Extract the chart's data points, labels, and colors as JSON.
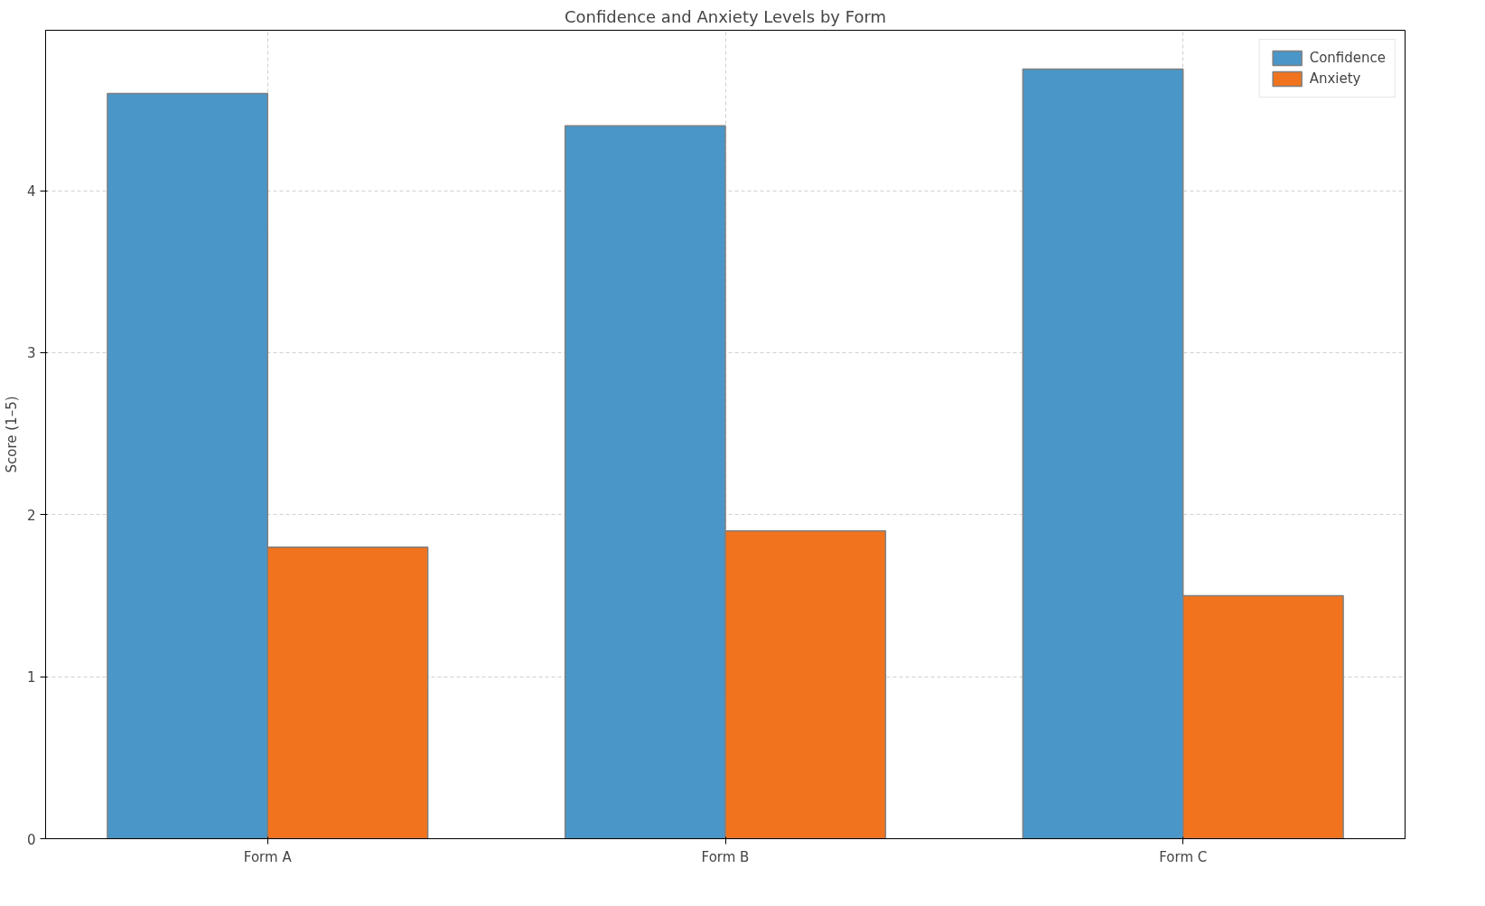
{
  "chart_data": {
    "type": "bar",
    "title": "Confidence and Anxiety Levels by Form",
    "ylabel": "Score (1–5)",
    "categories": [
      "Form A",
      "Form B",
      "Form C"
    ],
    "series": [
      {
        "name": "Confidence",
        "color": "#4a96c8",
        "values": [
          4.6,
          4.4,
          4.75
        ]
      },
      {
        "name": "Anxiety",
        "color": "#f1731e",
        "values": [
          1.8,
          1.9,
          1.5
        ]
      }
    ],
    "ylim": [
      0,
      4.99
    ],
    "yticks": [
      0,
      1,
      2,
      3,
      4
    ],
    "grid": true,
    "legend": "top right"
  }
}
